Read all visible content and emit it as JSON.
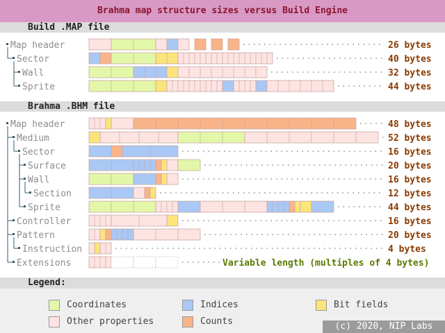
{
  "title": "Brahma map structure sizes versus Build Engine",
  "colors": {
    "coord": "#e3f7a8",
    "index": "#a9c8f5",
    "bits": "#fbe57a",
    "other": "#fde3e1",
    "count": "#f8b488",
    "title_bg": "#d89ac4",
    "title_text": "#8b1430",
    "size_text": "#8a3a00",
    "var_text": "#5a7a00"
  },
  "sections": [
    {
      "title": "Build .MAP file",
      "rows": [
        {
          "label": "Map header",
          "depth": 0,
          "size": "26 bytes"
        },
        {
          "label": "Sector",
          "depth": 1,
          "size": "40 bytes"
        },
        {
          "label": "Wall",
          "depth": 2,
          "size": "32 bytes"
        },
        {
          "label": "Sprite",
          "depth": 2,
          "size": "44 bytes"
        }
      ]
    },
    {
      "title": "Brahma .BHM file",
      "rows": [
        {
          "label": "Map header",
          "depth": 0,
          "size": "48 bytes"
        },
        {
          "label": "Medium",
          "depth": 1,
          "size": "52 bytes"
        },
        {
          "label": "Sector",
          "depth": 2,
          "size": "16 bytes"
        },
        {
          "label": "Surface",
          "depth": 3,
          "size": "20 bytes"
        },
        {
          "label": "Wall",
          "depth": 3,
          "size": "16 bytes"
        },
        {
          "label": "Section",
          "depth": 4,
          "size": "12 bytes"
        },
        {
          "label": "Sprite",
          "depth": 3,
          "size": "44 bytes"
        },
        {
          "label": "Controller",
          "depth": 1,
          "size": "16 bytes"
        },
        {
          "label": "Pattern",
          "depth": 1,
          "size": "20 bytes"
        },
        {
          "label": "Instruction",
          "depth": 2,
          "size": "4 bytes"
        },
        {
          "label": "Extensions",
          "depth": 1,
          "size": "Variable length (multiples of 4 bytes)"
        }
      ]
    }
  ],
  "legend": {
    "title": "Legend:",
    "items": [
      {
        "label": "Coordinates",
        "color_key": "coord"
      },
      {
        "label": "Indices",
        "color_key": "index"
      },
      {
        "label": "Bit fields",
        "color_key": "bits"
      },
      {
        "label": "Other properties",
        "color_key": "other"
      },
      {
        "label": "Counts",
        "color_key": "count"
      }
    ]
  },
  "credit": "(c) 2020, NIP Labs"
}
